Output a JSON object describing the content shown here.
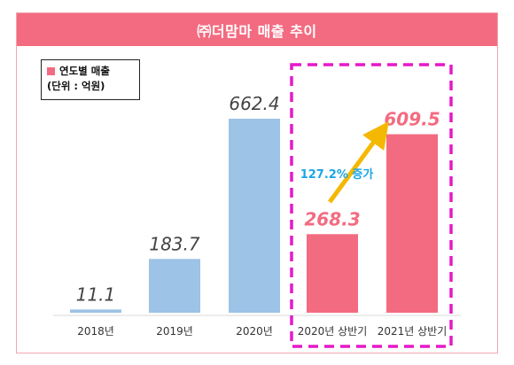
{
  "title": "㈜더맘마 매출 추이",
  "legend": {
    "label": "연도별  매출",
    "unit": "(단위 : 억원)"
  },
  "annotation": "127.2% 증가",
  "colors": {
    "header": "#f36b80",
    "bar_blue": "#9dc3e6",
    "bar_pink": "#f36b80",
    "highlight_box": "#e619c8",
    "arrow": "#f5b800",
    "annotation_text": "#1aa6e6"
  },
  "chart_data": {
    "type": "bar",
    "categories": [
      "2018년",
      "2019년",
      "2020년",
      "2020년 상반기",
      "2021년 상반기"
    ],
    "values": [
      11.1,
      183.7,
      662.4,
      268.3,
      609.5
    ],
    "value_labels": [
      "11.1",
      "183.7",
      "662.4",
      "268.3",
      "609.5"
    ],
    "bar_colors": [
      "#9dc3e6",
      "#9dc3e6",
      "#9dc3e6",
      "#f36b80",
      "#f36b80"
    ],
    "ylim": [
      0,
      662.4
    ],
    "grid": false,
    "legend_position": "top-left"
  }
}
